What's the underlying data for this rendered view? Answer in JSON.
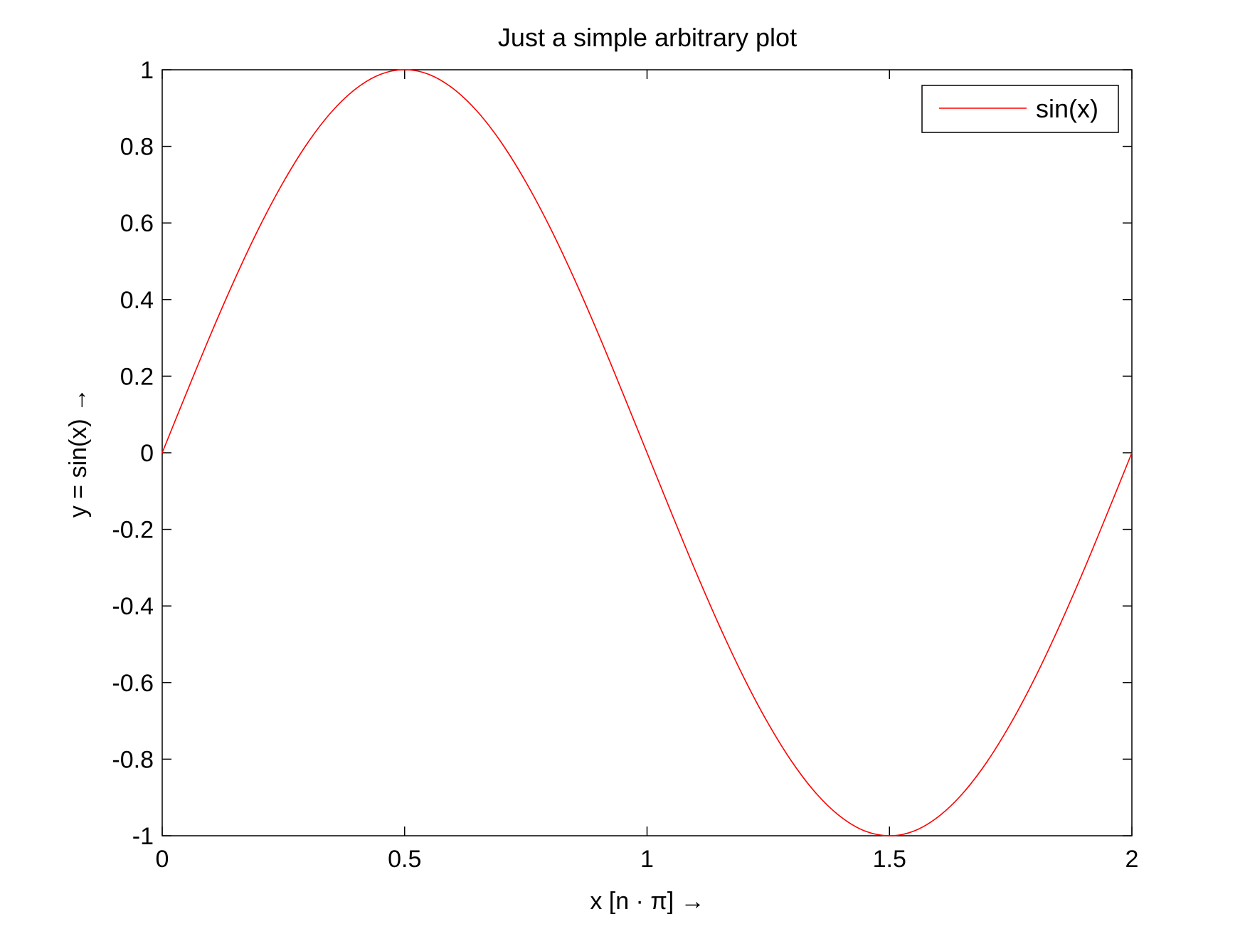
{
  "chart_data": {
    "type": "line",
    "title": "Just a simple arbitrary plot",
    "xlabel": "x [n · π]  →",
    "ylabel": "y = sin(x)  →",
    "xlim": [
      0,
      2
    ],
    "ylim": [
      -1,
      1
    ],
    "xticks": [
      0,
      0.5,
      1,
      1.5,
      2
    ],
    "xtick_labels": [
      "0",
      "0.5",
      "1",
      "1.5",
      "2"
    ],
    "yticks": [
      1,
      0.8,
      0.6,
      0.4,
      0.2,
      0,
      -0.2,
      -0.4,
      -0.6,
      -0.8,
      -1
    ],
    "ytick_labels": [
      "1",
      "0.8",
      "0.6",
      "0.4",
      "0.2",
      "0",
      "-0.2",
      "-0.4",
      "-0.6",
      "-0.8",
      "-1"
    ],
    "grid": false,
    "legend_position": "top-right",
    "series": [
      {
        "name": "sin(x)",
        "color": "#ff0000",
        "x": [
          0,
          0.05,
          0.1,
          0.15,
          0.2,
          0.25,
          0.3,
          0.35,
          0.4,
          0.45,
          0.5,
          0.55,
          0.6,
          0.65,
          0.7,
          0.75,
          0.8,
          0.85,
          0.9,
          0.95,
          1,
          1.05,
          1.1,
          1.15,
          1.2,
          1.25,
          1.3,
          1.35,
          1.4,
          1.45,
          1.5,
          1.55,
          1.6,
          1.65,
          1.7,
          1.75,
          1.8,
          1.85,
          1.9,
          1.95,
          2
        ],
        "y": [
          0,
          0.156,
          0.309,
          0.454,
          0.588,
          0.707,
          0.809,
          0.891,
          0.951,
          0.988,
          1,
          0.988,
          0.951,
          0.891,
          0.809,
          0.707,
          0.588,
          0.454,
          0.309,
          0.156,
          0,
          -0.156,
          -0.309,
          -0.454,
          -0.588,
          -0.707,
          -0.809,
          -0.891,
          -0.951,
          -0.988,
          -1,
          -0.988,
          -0.951,
          -0.891,
          -0.809,
          -0.707,
          -0.588,
          -0.454,
          -0.309,
          -0.156,
          0
        ]
      }
    ]
  }
}
